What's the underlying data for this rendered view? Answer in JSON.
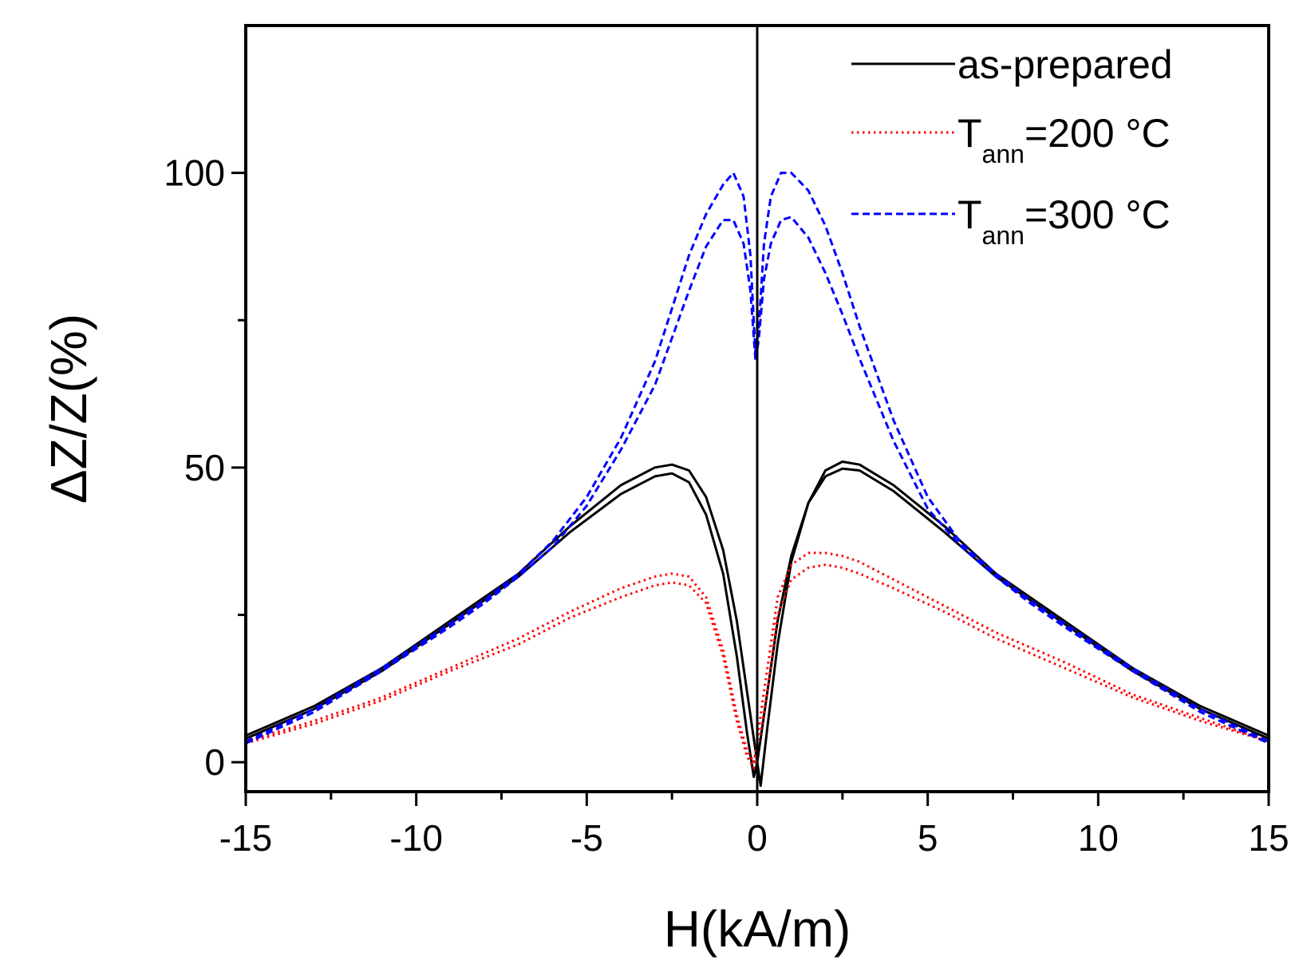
{
  "chart_data": {
    "type": "line",
    "title": "",
    "xlabel": "H(kA/m)",
    "ylabel": "ΔZ/Z(%)",
    "xlim": [
      -15,
      15
    ],
    "ylim": [
      -5,
      125
    ],
    "xticks": [
      -15,
      -10,
      -5,
      0,
      5,
      10,
      15
    ],
    "xtick_labels": [
      "-15",
      "-10",
      "-5",
      "0",
      "5",
      "10",
      "15"
    ],
    "yticks": [
      0,
      50,
      100
    ],
    "ytick_labels": [
      "0",
      "50",
      "100"
    ],
    "minor_xticks": [
      -12.5,
      -7.5,
      -2.5,
      2.5,
      7.5,
      12.5
    ],
    "minor_yticks": [
      25,
      75
    ],
    "vertical_line_x": 0,
    "grid": false,
    "legend_position": "top-right",
    "series": [
      {
        "name": "as-prepared",
        "legend_main": "as-prepared",
        "legend_sub": "",
        "legend_suffix": "",
        "color": "#000000",
        "style": "solid",
        "branches": [
          {
            "x": [
              -15,
              -13,
              -11,
              -9,
              -7,
              -5.5,
              -4,
              -3,
              -2.5,
              -2,
              -1.5,
              -1,
              -0.6,
              -0.3,
              -0.1,
              0,
              0.1,
              0.3,
              0.6,
              1,
              1.5,
              2,
              2.5,
              3,
              4,
              5.5,
              7,
              9,
              11,
              13,
              15
            ],
            "y": [
              4.5,
              9.5,
              16,
              24,
              32,
              40,
              47,
              50,
              50.5,
              49.5,
              45,
              36,
              24,
              12,
              4,
              0,
              -4,
              6,
              20,
              34,
              44,
              49.5,
              51,
              50.5,
              47,
              40,
              32,
              24,
              16,
              9.5,
              4.5
            ]
          },
          {
            "x": [
              -15,
              -13,
              -11,
              -9,
              -7,
              -5.5,
              -4,
              -3,
              -2.5,
              -2,
              -1.5,
              -1,
              -0.6,
              -0.3,
              -0.1,
              0,
              0.1,
              0.3,
              0.6,
              1,
              1.5,
              2,
              2.5,
              3,
              4,
              5.5,
              7,
              9,
              11,
              13,
              15
            ],
            "y": [
              4,
              9,
              15.5,
              23.5,
              31.5,
              39,
              45.5,
              48.5,
              49,
              47.5,
              42,
              32,
              18,
              5,
              -2.5,
              0,
              4,
              12,
              24,
              35,
              44,
              48.5,
              49.8,
              49.5,
              46,
              39,
              31.5,
              23.5,
              15.5,
              9,
              4
            ]
          }
        ]
      },
      {
        "name": "Tann=200 °C",
        "legend_main": "T",
        "legend_sub": "ann",
        "legend_suffix": "=200 °C",
        "color": "#ff0000",
        "style": "dotted",
        "branches": [
          {
            "x": [
              -15,
              -13,
              -11,
              -9,
              -7,
              -5.5,
              -4,
              -3,
              -2.5,
              -2,
              -1.5,
              -1,
              -0.6,
              -0.3,
              -0.1,
              0,
              0.1,
              0.3,
              0.6,
              1,
              1.5,
              2,
              2.5,
              3,
              4,
              5.5,
              7,
              9,
              11,
              13,
              15
            ],
            "y": [
              3.5,
              7,
              11,
              16,
              21,
              25.5,
              29.5,
              31.5,
              32,
              31.5,
              28,
              19,
              8,
              2,
              0,
              3,
              5,
              12,
              25,
              31,
              33,
              33.5,
              33,
              32,
              29.5,
              25.5,
              21,
              16,
              11,
              7,
              3.5
            ]
          },
          {
            "x": [
              -15,
              -13,
              -11,
              -9,
              -7,
              -5.5,
              -4,
              -3,
              -2.5,
              -2,
              -1.5,
              -1,
              -0.6,
              -0.3,
              -0.1,
              0,
              0.1,
              0.3,
              0.6,
              1,
              1.5,
              2,
              2.5,
              3,
              4,
              5.5,
              7,
              9,
              11,
              13,
              15
            ],
            "y": [
              3.2,
              6.5,
              10.5,
              15.5,
              20,
              24.5,
              28,
              30,
              30.5,
              30,
              27,
              18,
              7,
              1,
              -1,
              4,
              8,
              16,
              28,
              33.5,
              35.5,
              35.5,
              35,
              34,
              31,
              26.5,
              22,
              17,
              11.5,
              7.5,
              3.5
            ]
          }
        ]
      },
      {
        "name": "Tann=300 °C",
        "legend_main": "T",
        "legend_sub": "ann",
        "legend_suffix": "=300 °C",
        "color": "#0000ff",
        "style": "dashed",
        "branches": [
          {
            "x": [
              -15,
              -13,
              -11,
              -9,
              -8,
              -7,
              -6,
              -5,
              -4,
              -3,
              -2.5,
              -2,
              -1.5,
              -1,
              -0.7,
              -0.4,
              -0.2,
              -0.05,
              0.05,
              0.2,
              0.4,
              0.7,
              1,
              1.5,
              2,
              2.5,
              3,
              4,
              5,
              6,
              7,
              8,
              9,
              11,
              13,
              15
            ],
            "y": [
              3.5,
              9,
              16,
              23.5,
              27.5,
              32,
              37.5,
              45,
              55,
              68,
              77,
              86,
              93,
              98,
              100,
              96,
              86,
              69,
              74,
              88,
              96,
              100,
              100,
              97,
              91,
              83,
              74,
              58,
              45,
              37,
              32,
              27.5,
              23.5,
              16,
              9,
              3.5
            ]
          },
          {
            "x": [
              -15,
              -13,
              -11,
              -9,
              -8,
              -7,
              -6,
              -5,
              -4,
              -3,
              -2.5,
              -2,
              -1.5,
              -1,
              -0.7,
              -0.4,
              -0.2,
              -0.05,
              0.05,
              0.2,
              0.4,
              0.7,
              1,
              1.5,
              2,
              2.5,
              3,
              4,
              5,
              6,
              7,
              8,
              9,
              11,
              13,
              15
            ],
            "y": [
              3.2,
              8.5,
              15.5,
              23,
              27,
              31.5,
              36.5,
              43.5,
              53,
              64,
              72,
              80,
              87.5,
              92,
              92,
              88,
              80,
              68,
              72,
              82,
              88,
              92,
              92.5,
              89,
              83,
              76,
              68.5,
              54.5,
              43,
              36.5,
              31.5,
              27,
              23,
              15.5,
              8.5,
              3.2
            ]
          }
        ]
      }
    ]
  }
}
